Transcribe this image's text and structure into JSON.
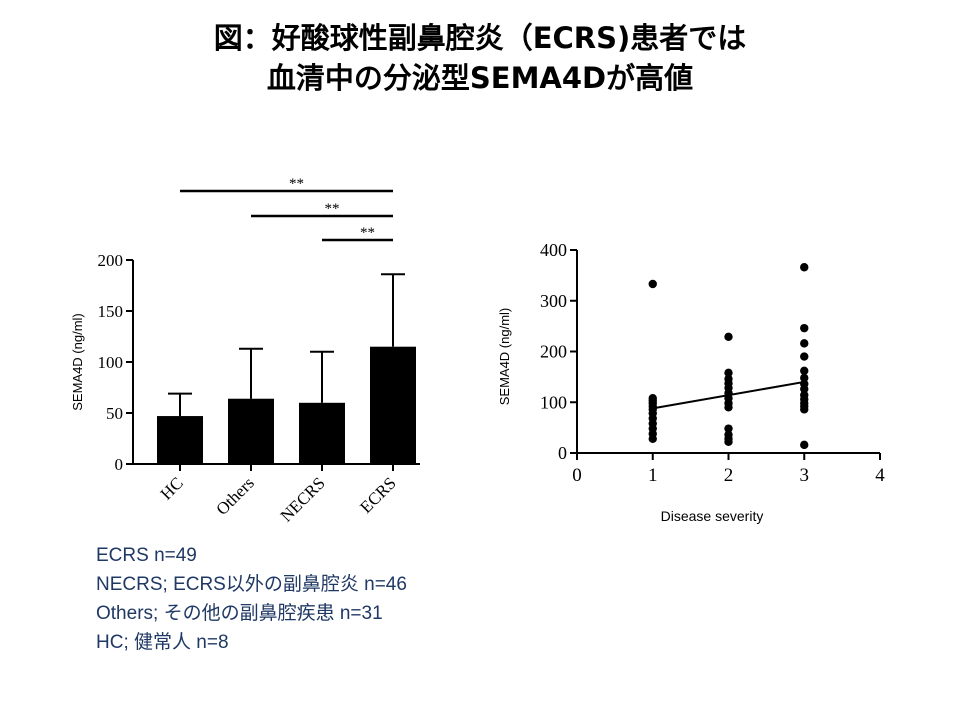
{
  "title": {
    "line1": "図：好酸球性副鼻腔炎（ECRS)患者では",
    "line2": "血清中の分泌型SEMA4Dが高値"
  },
  "notes": [
    "ECRS n=49",
    "NECRS; ECRS以外の副鼻腔炎 n=46",
    "Others; その他の副鼻腔疾患 n=31",
    "HC; 健常人 n=8"
  ],
  "chart_data": [
    {
      "type": "bar",
      "categories": [
        "HC",
        "Others",
        "NECRS",
        "ECRS"
      ],
      "values": [
        47,
        64,
        60,
        115
      ],
      "error_upper": [
        69,
        113,
        110,
        186
      ],
      "ylabel": "SEMA4D (ng/ml)",
      "ylim": [
        0,
        200
      ],
      "yticks": [
        0,
        50,
        100,
        150,
        200
      ],
      "significance": [
        {
          "from": "HC",
          "to": "ECRS",
          "label": "**"
        },
        {
          "from": "Others",
          "to": "ECRS",
          "label": "**"
        },
        {
          "from": "NECRS",
          "to": "ECRS",
          "label": "**"
        }
      ],
      "colors": {
        "bar": "#000000"
      }
    },
    {
      "type": "scatter",
      "xlabel": "Disease severity",
      "ylabel": "SEMA4D (ng/ml)",
      "xlim": [
        0,
        4
      ],
      "ylim": [
        0,
        400
      ],
      "xticks": [
        0,
        1,
        2,
        3,
        4
      ],
      "yticks": [
        0,
        100,
        200,
        300,
        400
      ],
      "points": [
        {
          "x": 1,
          "y": 333
        },
        {
          "x": 1,
          "y": 108
        },
        {
          "x": 1,
          "y": 103
        },
        {
          "x": 1,
          "y": 98
        },
        {
          "x": 1,
          "y": 92
        },
        {
          "x": 1,
          "y": 86
        },
        {
          "x": 1,
          "y": 78
        },
        {
          "x": 1,
          "y": 68
        },
        {
          "x": 1,
          "y": 58
        },
        {
          "x": 1,
          "y": 48
        },
        {
          "x": 1,
          "y": 38
        },
        {
          "x": 1,
          "y": 28
        },
        {
          "x": 2,
          "y": 229
        },
        {
          "x": 2,
          "y": 158
        },
        {
          "x": 2,
          "y": 146
        },
        {
          "x": 2,
          "y": 137
        },
        {
          "x": 2,
          "y": 128
        },
        {
          "x": 2,
          "y": 118
        },
        {
          "x": 2,
          "y": 108
        },
        {
          "x": 2,
          "y": 98
        },
        {
          "x": 2,
          "y": 90
        },
        {
          "x": 2,
          "y": 48
        },
        {
          "x": 2,
          "y": 36
        },
        {
          "x": 2,
          "y": 28
        },
        {
          "x": 2,
          "y": 22
        },
        {
          "x": 3,
          "y": 366
        },
        {
          "x": 3,
          "y": 246
        },
        {
          "x": 3,
          "y": 216
        },
        {
          "x": 3,
          "y": 190
        },
        {
          "x": 3,
          "y": 162
        },
        {
          "x": 3,
          "y": 148
        },
        {
          "x": 3,
          "y": 136
        },
        {
          "x": 3,
          "y": 126
        },
        {
          "x": 3,
          "y": 114
        },
        {
          "x": 3,
          "y": 106
        },
        {
          "x": 3,
          "y": 98
        },
        {
          "x": 3,
          "y": 92
        },
        {
          "x": 3,
          "y": 86
        },
        {
          "x": 3,
          "y": 16
        }
      ],
      "trend_line": [
        {
          "x": 1,
          "y": 88
        },
        {
          "x": 3,
          "y": 140
        }
      ],
      "colors": {
        "point": "#000000"
      }
    }
  ]
}
